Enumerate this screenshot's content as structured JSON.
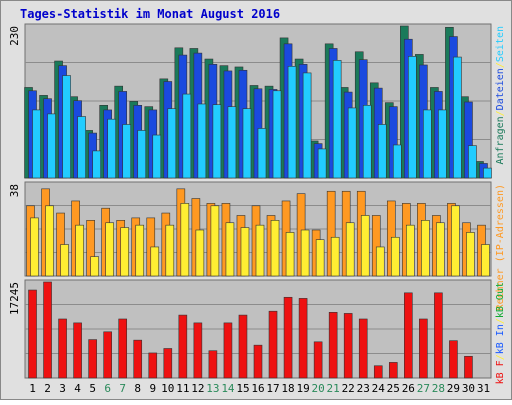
{
  "colors": {
    "frame_bg": "#e0e0e0",
    "plot_bg": "#c0c0c0",
    "title": "#0000cc",
    "grid": "#8c8c8c",
    "anfragen": "#1a7a5a",
    "dateien": "#1a4adf",
    "seiten": "#22ccff",
    "rechner": "#ff9922",
    "besuche": "#ffee33",
    "kb_f": "#ee1111",
    "kb_in": "#1a5aff",
    "kb_out": "#11aa33",
    "day_weekday": "#000000",
    "day_weekend": "#2a8a5a"
  },
  "chart_data": {
    "title": "Tages-Statistik im Monat August 2016",
    "type": "bar",
    "days": [
      "1",
      "2",
      "3",
      "4",
      "5",
      "6",
      "7",
      "8",
      "9",
      "10",
      "11",
      "12",
      "13",
      "14",
      "15",
      "16",
      "17",
      "18",
      "19",
      "20",
      "21",
      "22",
      "23",
      "24",
      "25",
      "26",
      "27",
      "28",
      "29",
      "30",
      "31"
    ],
    "weekend_days": [
      "6",
      "7",
      "13",
      "14",
      "20",
      "21",
      "27",
      "28"
    ],
    "panels": [
      {
        "id": "top",
        "ymax_label": "230",
        "ymax": 230,
        "legend": [
          {
            "text": "Anfragen",
            "color_key": "anfragen"
          },
          {
            "text": "/",
            "color_key": "besuche"
          },
          {
            "text": "Dateien",
            "color_key": "dateien"
          },
          {
            "text": "/",
            "color_key": "besuche"
          },
          {
            "text": "Seiten",
            "color_key": "seiten"
          }
        ],
        "series": [
          {
            "name": "Anfragen",
            "color_key": "anfragen",
            "values": [
              137,
              125,
              177,
              123,
              72,
              110,
              139,
              116,
              108,
              150,
              197,
              196,
              180,
              170,
              168,
              140,
              139,
              212,
              180,
              56,
              203,
              137,
              191,
              144,
              114,
              230,
              187,
              137,
              228,
              123,
              25
            ]
          },
          {
            "name": "Dateien",
            "color_key": "dateien",
            "values": [
              132,
              120,
              170,
              117,
              68,
              103,
              131,
              110,
              103,
              146,
              186,
              189,
              172,
              162,
              163,
              135,
              134,
              203,
              172,
              52,
              196,
              130,
              179,
              136,
              108,
              210,
              171,
              131,
              214,
              115,
              22
            ]
          },
          {
            "name": "Seiten",
            "color_key": "seiten",
            "values": [
              103,
              97,
              155,
              93,
              41,
              89,
              81,
              72,
              65,
              105,
              127,
              112,
              111,
              108,
              105,
              75,
              132,
              169,
              159,
              44,
              178,
              106,
              110,
              81,
              50,
              184,
              103,
              103,
              183,
              49,
              15
            ]
          }
        ]
      },
      {
        "id": "middle",
        "ymax_label": "38",
        "ymax": 38,
        "legend": [
          {
            "text": "Rechner (IP-Adressen)",
            "color_key": "rechner"
          }
        ],
        "series": [
          {
            "name": "Rechner (IP-Adressen)",
            "color_key": "rechner",
            "values": [
              29,
              36,
              26,
              31,
              23,
              28,
              23,
              24,
              24,
              26,
              36,
              32,
              30,
              30,
              25,
              29,
              25,
              31,
              34,
              19,
              35,
              35,
              35,
              25,
              31,
              30,
              30,
              25,
              30,
              22,
              21
            ]
          },
          {
            "name": "Besuche",
            "color_key": "besuche",
            "values": [
              24,
              29,
              13,
              21,
              8,
              22,
              20,
              21,
              12,
              21,
              30,
              19,
              29,
              22,
              20,
              21,
              23,
              18,
              19,
              15,
              16,
              22,
              25,
              12,
              16,
              21,
              23,
              22,
              29,
              18,
              13
            ]
          }
        ]
      },
      {
        "id": "bottom",
        "ymax_label": "17245",
        "ymax": 17245,
        "legend": [
          {
            "text": "kB F",
            "color_key": "kb_f"
          },
          {
            "text": "/",
            "color_key": "besuche"
          },
          {
            "text": "kB In",
            "color_key": "kb_in"
          },
          {
            "text": "/",
            "color_key": "besuche"
          },
          {
            "text": "kB Out",
            "color_key": "kb_out"
          }
        ],
        "series": [
          {
            "name": "kB F",
            "color_key": "kb_f",
            "values": [
              15800,
              17245,
              10600,
              9900,
              6900,
              8300,
              10600,
              6800,
              4500,
              5300,
              11300,
              9900,
              4900,
              9900,
              11300,
              5900,
              12000,
              14500,
              14300,
              6500,
              11800,
              11600,
              10600,
              2200,
              2800,
              15300,
              10600,
              15300,
              6700,
              3900,
              0
            ]
          }
        ]
      }
    ]
  }
}
